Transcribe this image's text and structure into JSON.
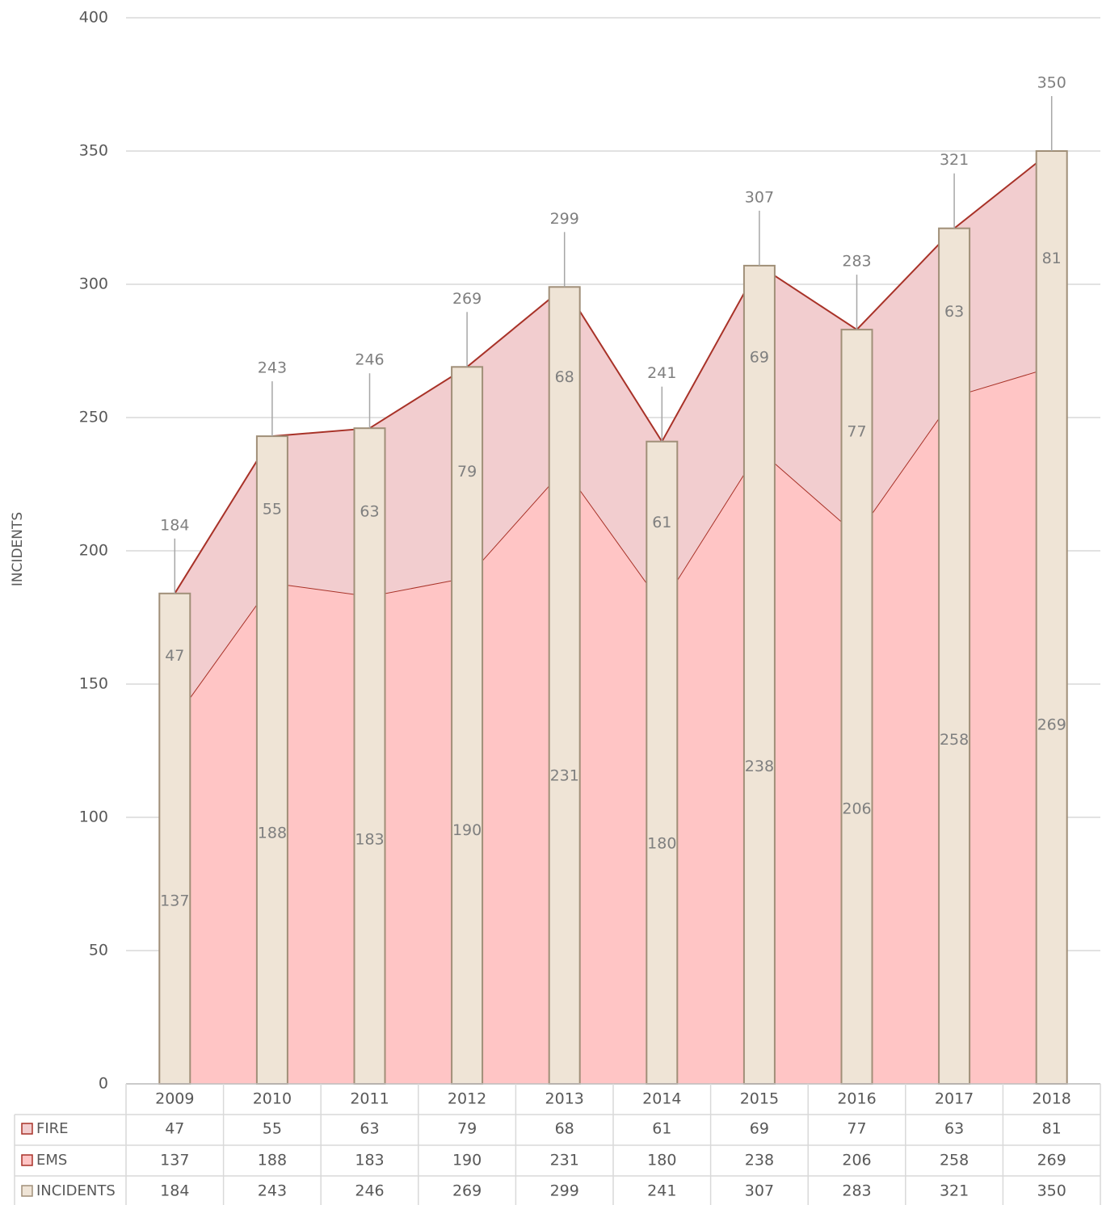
{
  "chart_data": {
    "type": "combo",
    "y_label": "INCIDENTS",
    "categories": [
      "2009",
      "2010",
      "2011",
      "2012",
      "2013",
      "2014",
      "2015",
      "2016",
      "2017",
      "2018"
    ],
    "series": [
      {
        "name": "FIRE",
        "kind": "area",
        "color": "#f2cdcf",
        "line_color": "#a83228",
        "values": [
          47,
          55,
          63,
          79,
          68,
          61,
          69,
          77,
          63,
          81
        ]
      },
      {
        "name": "EMS",
        "kind": "area",
        "color": "#ffc5c5",
        "line_color": "#a83228",
        "values": [
          137,
          188,
          183,
          190,
          231,
          180,
          238,
          206,
          258,
          269
        ]
      },
      {
        "name": "INCIDENTS",
        "kind": "bar",
        "color": "#efe4d6",
        "line_color": "#a08f78",
        "values": [
          184,
          243,
          246,
          269,
          299,
          241,
          307,
          283,
          321,
          350
        ]
      }
    ],
    "ylim": [
      0,
      400
    ],
    "yticks": [
      0,
      50,
      100,
      150,
      200,
      250,
      300,
      350,
      400
    ],
    "grid": true,
    "data_table": true
  }
}
